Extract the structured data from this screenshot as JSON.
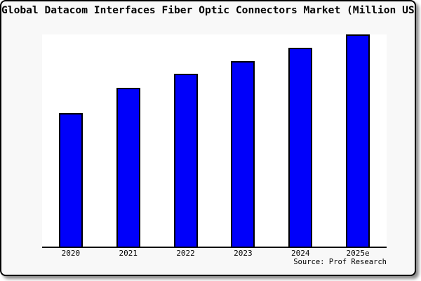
{
  "frame": {
    "border_color": "#000000",
    "background": "#f8f8f8",
    "plot_background": "#ffffff",
    "shadow_color": "rgba(0,0,0,0.45)"
  },
  "chart_data": {
    "type": "bar",
    "title": "Global Datacom Interfaces Fiber Optic Connectors Market (Million USD)",
    "categories": [
      "2020",
      "2021",
      "2022",
      "2023",
      "2024",
      "2025e"
    ],
    "values": [
      62.9,
      74.8,
      81.5,
      87.4,
      93.7,
      100
    ],
    "value_scale": "percent of tallest bar; numeric y-axis not labeled in image",
    "ylim": [
      0,
      100
    ],
    "xlabel": "",
    "ylabel": "",
    "grid": false,
    "legend": false,
    "y_axis_visible": false,
    "bar_color": "#0000fa",
    "bar_border_color": "#000000",
    "source_note": "Source: Prof Research"
  }
}
